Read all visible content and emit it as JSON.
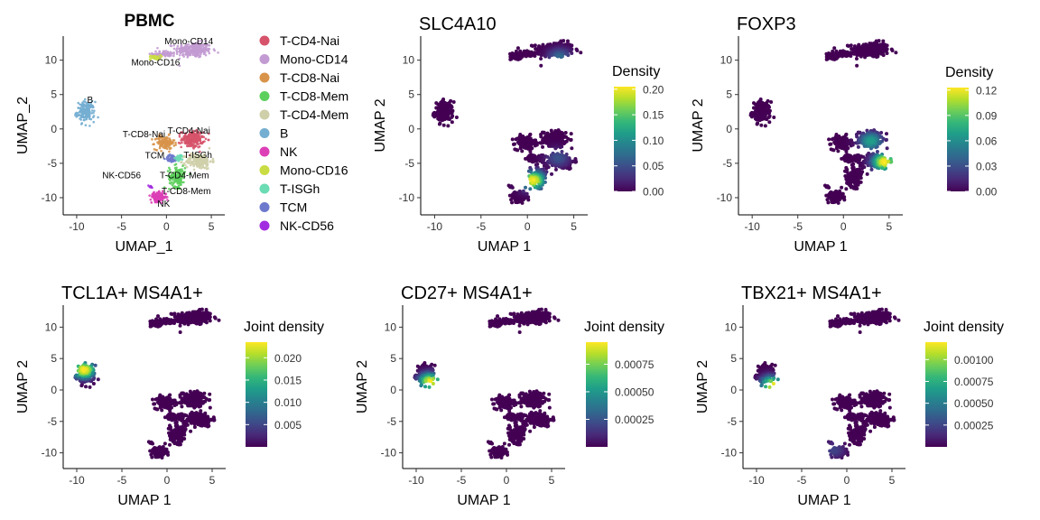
{
  "colors": {
    "viridis": [
      "#440154",
      "#482878",
      "#3e4989",
      "#31688e",
      "#26828e",
      "#1f9e89",
      "#35b779",
      "#6ece58",
      "#b5de2b",
      "#fde725"
    ],
    "clusters": {
      "T-CD4-Nai": "#d6536a",
      "Mono-CD14": "#c39bd3",
      "T-CD8-Nai": "#d8944a",
      "T-CD8-Mem": "#5ccf5c",
      "T-CD4-Mem": "#cfcfaa",
      "B": "#74aed1",
      "NK": "#dc3fb6",
      "Mono-CD16": "#c9dc43",
      "T-ISGh": "#6bdcb3",
      "TCM": "#6d79cc",
      "NK-CD56": "#a22ce0"
    }
  },
  "chart_data": [
    {
      "id": "pbmc",
      "type": "scatter",
      "title": "PBMC",
      "xlabel": "UMAP_1",
      "ylabel": "UMAP_2",
      "xlim": [
        -11.5,
        6.5
      ],
      "ylim": [
        -12.5,
        13.5
      ],
      "xticks": [
        -10,
        -5,
        0,
        5
      ],
      "yticks": [
        -10,
        -5,
        0,
        5,
        10
      ],
      "legend_position": "right",
      "legend": [
        "T-CD4-Nai",
        "Mono-CD14",
        "T-CD8-Nai",
        "T-CD8-Mem",
        "T-CD4-Mem",
        "B",
        "NK",
        "Mono-CD16",
        "T-ISGh",
        "TCM",
        "NK-CD56"
      ],
      "cluster_labels": [
        {
          "text": "Mono-CD14",
          "x": 2.5,
          "y": 12.3
        },
        {
          "text": "Mono-CD16",
          "x": -1.2,
          "y": 9.2
        },
        {
          "text": "B",
          "x": -8.5,
          "y": 3.8
        },
        {
          "text": "T-CD8-Nai",
          "x": -2.5,
          "y": -1.2
        },
        {
          "text": "T-CD4-Nai",
          "x": 2.5,
          "y": -0.7
        },
        {
          "text": "TCM",
          "x": -1.3,
          "y": -4.3
        },
        {
          "text": "T-ISGh",
          "x": 3.5,
          "y": -4.2
        },
        {
          "text": "NK-CD56",
          "x": -5,
          "y": -7.2
        },
        {
          "text": "T-CD4-Mem",
          "x": 2,
          "y": -7.2
        },
        {
          "text": "T-CD8-Mem",
          "x": 2.2,
          "y": -9.5
        },
        {
          "text": "NK",
          "x": -0.3,
          "y": -11.3
        }
      ]
    },
    {
      "id": "slc4a10",
      "type": "scatter",
      "title": "SLC4A10",
      "xlabel": "UMAP 1",
      "ylabel": "UMAP 2",
      "xlim": [
        -11.5,
        6.5
      ],
      "ylim": [
        -12.5,
        13.5
      ],
      "xticks": [
        -10,
        -5,
        0,
        5
      ],
      "yticks": [
        -10,
        -5,
        0,
        5,
        10
      ],
      "colorbar": {
        "title": "Density",
        "min": 0.0,
        "max": 0.205,
        "ticks": [
          "0.00",
          "0.05",
          "0.10",
          "0.15",
          "0.20"
        ],
        "tick_values": [
          0,
          0.05,
          0.1,
          0.15,
          0.2
        ]
      },
      "hotspots": [
        {
          "x": 0.6,
          "y": -7.5,
          "value": 1.0
        },
        {
          "x": 3.5,
          "y": 10.3,
          "value": 0.35
        },
        {
          "x": 3.3,
          "y": -4.2,
          "value": 0.25
        }
      ]
    },
    {
      "id": "foxp3",
      "type": "scatter",
      "title": "FOXP3",
      "xlabel": "UMAP 1",
      "ylabel": "UMAP 2",
      "xlim": [
        -11.5,
        6.5
      ],
      "ylim": [
        -12.5,
        13.5
      ],
      "xticks": [
        -10,
        -5,
        0,
        5
      ],
      "yticks": [
        -10,
        -5,
        0,
        5,
        10
      ],
      "colorbar": {
        "title": "Density",
        "min": 0.0,
        "max": 0.123,
        "ticks": [
          "0.00",
          "0.03",
          "0.06",
          "0.09",
          "0.12"
        ],
        "tick_values": [
          0,
          0.03,
          0.06,
          0.09,
          0.12
        ]
      },
      "hotspots": [
        {
          "x": 4.5,
          "y": -4.8,
          "value": 1.0
        },
        {
          "x": 3.0,
          "y": -1.8,
          "value": 0.55
        }
      ]
    },
    {
      "id": "tcl1a",
      "type": "scatter",
      "title": "TCL1A+ MS4A1+",
      "xlabel": "UMAP 1",
      "ylabel": "UMAP 2",
      "xlim": [
        -11.5,
        6.5
      ],
      "ylim": [
        -12.5,
        13.5
      ],
      "xticks": [
        -10,
        -5,
        0,
        5
      ],
      "yticks": [
        -10,
        -5,
        0,
        5,
        10
      ],
      "colorbar": {
        "title": "Joint density",
        "min": 0.0,
        "max": 0.0235,
        "ticks": [
          "0.005",
          "0.010",
          "0.015",
          "0.020"
        ],
        "tick_values": [
          0.005,
          0.01,
          0.015,
          0.02
        ]
      },
      "hotspots": [
        {
          "x": -9.2,
          "y": 3.2,
          "value": 1.0
        }
      ]
    },
    {
      "id": "cd27",
      "type": "scatter",
      "title": "CD27+ MS4A1+",
      "xlabel": "UMAP 1",
      "ylabel": "UMAP 2",
      "xlim": [
        -11.5,
        6.5
      ],
      "ylim": [
        -12.5,
        13.5
      ],
      "xticks": [
        -10,
        -5,
        0,
        5
      ],
      "yticks": [
        -10,
        -5,
        0,
        5,
        10
      ],
      "colorbar": {
        "title": "Joint density",
        "min": 0.0,
        "max": 0.00095,
        "ticks": [
          "0.00025",
          "0.00050",
          "0.00075"
        ],
        "tick_values": [
          0.00025,
          0.0005,
          0.00075
        ]
      },
      "hotspots": [
        {
          "x": -8.4,
          "y": 1.3,
          "value": 1.0
        }
      ]
    },
    {
      "id": "tbx21",
      "type": "scatter",
      "title": "TBX21+ MS4A1+",
      "xlabel": "UMAP 1",
      "ylabel": "UMAP 2",
      "xlim": [
        -11.5,
        6.5
      ],
      "ylim": [
        -12.5,
        13.5
      ],
      "xticks": [
        -10,
        -5,
        0,
        5
      ],
      "yticks": [
        -10,
        -5,
        0,
        5,
        10
      ],
      "colorbar": {
        "title": "Joint density",
        "min": 0.0,
        "max": 0.0012,
        "ticks": [
          "0.00025",
          "0.00050",
          "0.00075",
          "0.00100"
        ],
        "tick_values": [
          0.00025,
          0.0005,
          0.00075,
          0.001
        ]
      },
      "hotspots": [
        {
          "x": -8.2,
          "y": 0.8,
          "value": 1.0
        },
        {
          "x": -1.5,
          "y": -9.5,
          "value": 0.2
        }
      ]
    }
  ]
}
